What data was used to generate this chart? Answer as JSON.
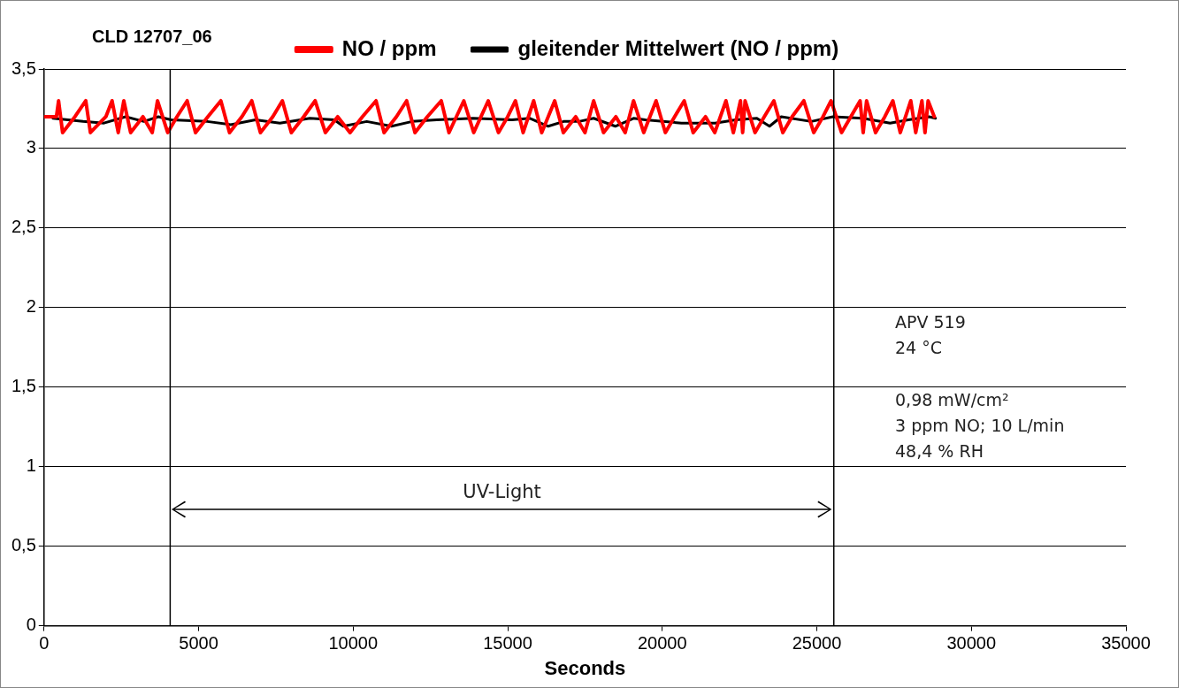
{
  "chart_data": {
    "type": "line",
    "title": "CLD 12707_06",
    "xlabel": "Seconds",
    "xlim": [
      0,
      35000
    ],
    "xticks": [
      0,
      5000,
      10000,
      15000,
      20000,
      25000,
      30000,
      35000
    ],
    "ylim": [
      0,
      3.5
    ],
    "yticks": [
      0,
      {
        "value": 0.5,
        "label": "0,5"
      },
      1,
      {
        "value": 1.5,
        "label": "1,5"
      },
      2,
      {
        "value": 2.5,
        "label": "2,5"
      },
      3,
      {
        "value": 3.5,
        "label": "3,5"
      }
    ],
    "grid": "y",
    "legend": "top",
    "marker": "none",
    "line_style": "solid",
    "series": [
      {
        "name": "NO / ppm",
        "color": "#ff0000",
        "x": [
          0,
          400,
          470,
          600,
          1000,
          1350,
          1500,
          2000,
          2200,
          2400,
          2580,
          2800,
          3200,
          3500,
          3670,
          4000,
          4300,
          4630,
          4900,
          5300,
          5720,
          6000,
          6400,
          6720,
          7000,
          7400,
          7710,
          8000,
          8400,
          8770,
          9100,
          9500,
          9900,
          10300,
          10740,
          11000,
          11400,
          11730,
          12000,
          12400,
          12850,
          13100,
          13580,
          13900,
          14370,
          14700,
          15000,
          15250,
          15500,
          15840,
          16100,
          16520,
          16800,
          17200,
          17500,
          17780,
          18100,
          18500,
          18800,
          19070,
          19400,
          19800,
          20100,
          20400,
          20710,
          21000,
          21400,
          21700,
          22060,
          22300,
          22530,
          22600,
          22680,
          23000,
          23300,
          23610,
          23900,
          24200,
          24580,
          24900,
          25200,
          25460,
          25800,
          26100,
          26400,
          26500,
          26610,
          26900,
          27200,
          27460,
          27700,
          28040,
          28200,
          28400,
          28500,
          28600,
          28800
        ],
        "values": [
          3.2,
          3.2,
          3.3,
          3.1,
          3.2,
          3.3,
          3.1,
          3.2,
          3.3,
          3.1,
          3.3,
          3.1,
          3.2,
          3.1,
          3.3,
          3.1,
          3.2,
          3.3,
          3.1,
          3.2,
          3.3,
          3.1,
          3.2,
          3.3,
          3.1,
          3.2,
          3.3,
          3.1,
          3.2,
          3.3,
          3.1,
          3.2,
          3.1,
          3.2,
          3.3,
          3.1,
          3.2,
          3.3,
          3.1,
          3.2,
          3.3,
          3.1,
          3.3,
          3.1,
          3.3,
          3.1,
          3.2,
          3.3,
          3.1,
          3.3,
          3.1,
          3.3,
          3.1,
          3.2,
          3.1,
          3.3,
          3.1,
          3.2,
          3.1,
          3.3,
          3.1,
          3.3,
          3.1,
          3.2,
          3.3,
          3.1,
          3.2,
          3.1,
          3.3,
          3.1,
          3.3,
          3.1,
          3.3,
          3.1,
          3.2,
          3.3,
          3.1,
          3.2,
          3.3,
          3.1,
          3.2,
          3.3,
          3.1,
          3.2,
          3.3,
          3.1,
          3.3,
          3.1,
          3.2,
          3.3,
          3.1,
          3.3,
          3.1,
          3.3,
          3.1,
          3.3,
          3.2
        ]
      },
      {
        "name": "gleitender Mittelwert (NO / ppm)",
        "color": "#000000",
        "x": [
          290,
          1260,
          1940,
          2640,
          3230,
          3700,
          4110,
          5280,
          6040,
          6840,
          7630,
          8600,
          9390,
          9680,
          10440,
          11240,
          11910,
          12700,
          13880,
          15140,
          15720,
          16310,
          16810,
          17310,
          17780,
          18480,
          19070,
          19450,
          20620,
          21710,
          22380,
          23060,
          23470,
          23850,
          24820,
          25520,
          26490,
          27370,
          27960,
          28630,
          28840
        ],
        "values": [
          3.19,
          3.17,
          3.16,
          3.2,
          3.17,
          3.2,
          3.18,
          3.17,
          3.15,
          3.18,
          3.16,
          3.19,
          3.18,
          3.14,
          3.17,
          3.14,
          3.17,
          3.18,
          3.19,
          3.18,
          3.19,
          3.14,
          3.17,
          3.17,
          3.19,
          3.14,
          3.19,
          3.18,
          3.16,
          3.16,
          3.18,
          3.19,
          3.14,
          3.2,
          3.17,
          3.2,
          3.19,
          3.16,
          3.18,
          3.2,
          3.19
        ]
      }
    ],
    "ref_lines": [
      {
        "axis": "x",
        "value": 4080,
        "color": "#000000"
      },
      {
        "axis": "x",
        "value": 25550,
        "color": "#000000"
      }
    ],
    "annotations": [
      "UV-Light",
      "APV 519",
      "24 °C",
      "0,98 mW/cm²",
      "3 ppm NO; 10 L/min",
      "48,4 % RH"
    ]
  }
}
